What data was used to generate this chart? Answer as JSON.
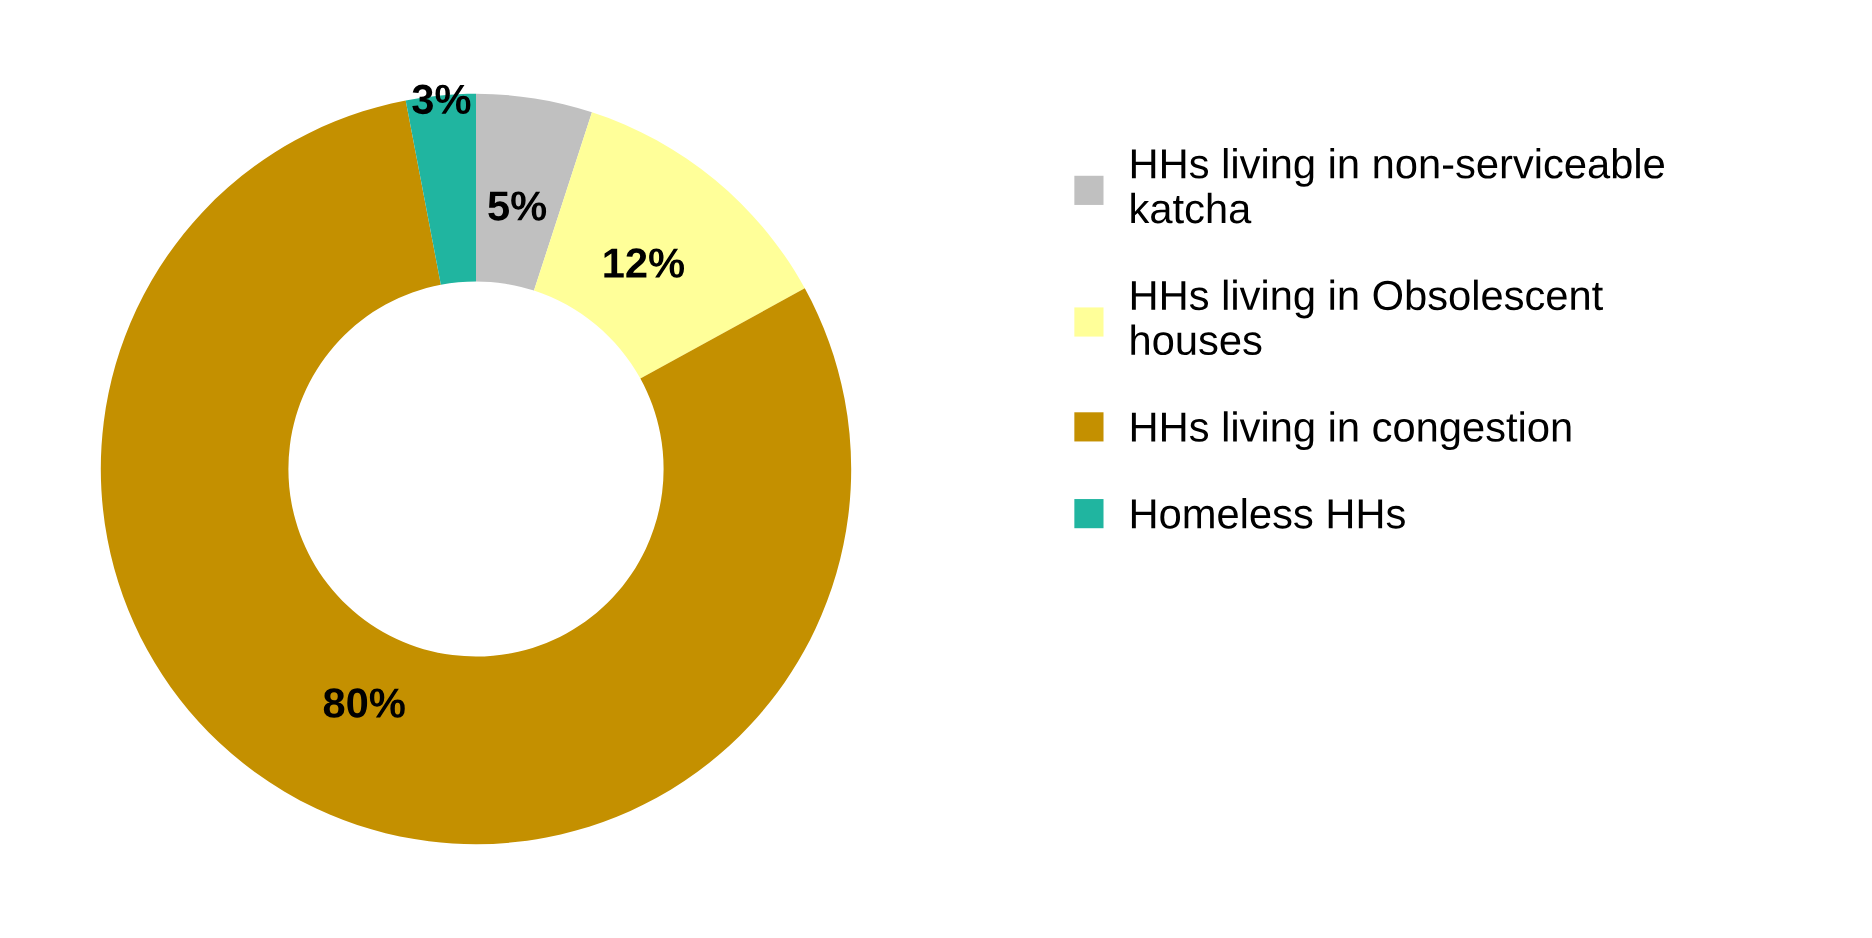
{
  "chart_data": {
    "type": "donut",
    "categories": [
      "HHs living in non-serviceable\nkatcha",
      "HHs living in Obsolescent\nhouses",
      "HHs living in congestion",
      "Homeless HHs"
    ],
    "values": [
      5,
      12,
      80,
      3
    ],
    "colors": [
      "#c0c0c0",
      "#ffff99",
      "#c49000",
      "#20b5a0"
    ],
    "value_labels": [
      "5%",
      "12%",
      "80%",
      "3%"
    ],
    "legend": "right"
  }
}
